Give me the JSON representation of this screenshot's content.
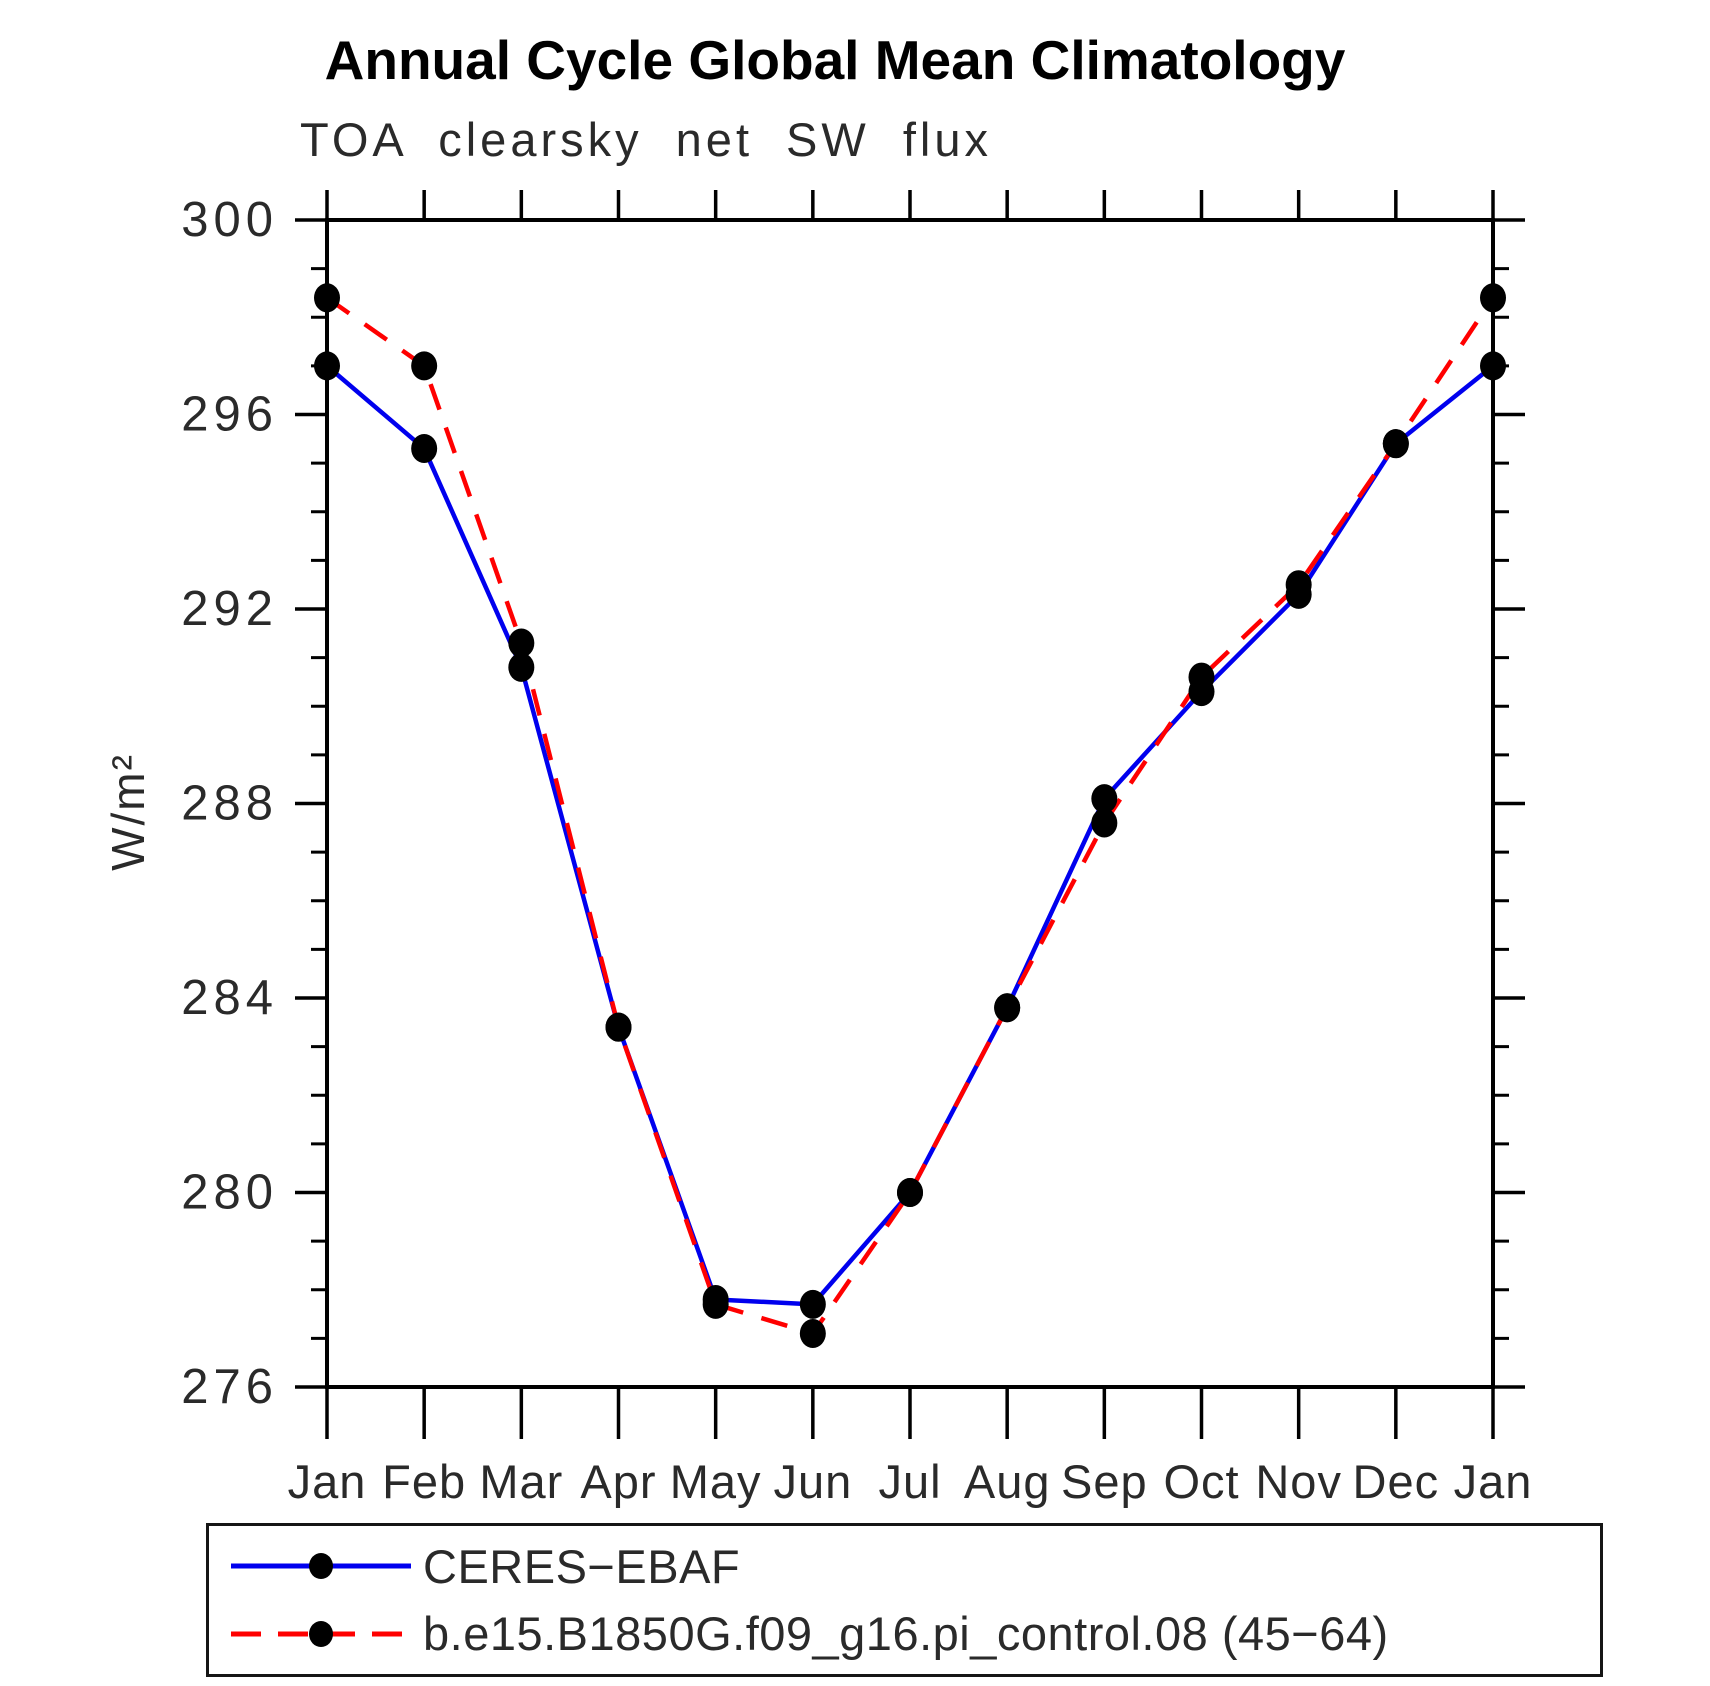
{
  "chart_data": {
    "type": "line",
    "title": "Annual Cycle Global Mean Climatology",
    "subtitle": "TOA clearsky net SW flux",
    "ylabel": "W/m²",
    "categories": [
      "Jan",
      "Feb",
      "Mar",
      "Apr",
      "May",
      "Jun",
      "Jul",
      "Aug",
      "Sep",
      "Oct",
      "Nov",
      "Dec",
      "Jan"
    ],
    "ylim": [
      276,
      300
    ],
    "yticks_major": [
      276,
      280,
      284,
      288,
      292,
      296,
      300
    ],
    "ytick_minor_step": 1,
    "grid": false,
    "legend_position": "bottom",
    "axis_color": "#000000",
    "text_color": "#2a2a2a",
    "marker_color": "#000000",
    "series": [
      {
        "name": "CERES−EBAF",
        "color": "#0000EE",
        "style": "solid",
        "values": [
          297.0,
          295.3,
          290.8,
          283.4,
          277.8,
          277.7,
          280.0,
          283.8,
          288.1,
          290.3,
          292.3,
          295.4,
          297.0
        ]
      },
      {
        "name": "b.e15.B1850G.f09_g16.pi_control.08 (45−64)",
        "color": "#FF0000",
        "style": "dashed",
        "values": [
          298.4,
          297.0,
          291.3,
          283.4,
          277.7,
          277.1,
          280.0,
          283.8,
          287.6,
          290.6,
          292.5,
          295.4,
          298.4
        ]
      }
    ]
  }
}
